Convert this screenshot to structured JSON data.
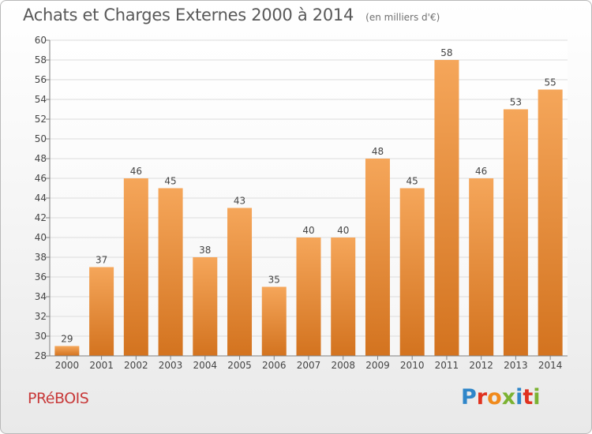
{
  "header": {
    "title": "Achats et Charges Externes 2000 à 2014",
    "unit": "(en milliers d'€)"
  },
  "footer": {
    "commune": "PRéBOIS",
    "brand": "Proxiti",
    "brand_colors": [
      "#2f86c9",
      "#e0321f",
      "#f08a1c",
      "#7bb232",
      "#2f86c9",
      "#e0321f",
      "#7bb232"
    ]
  },
  "colors": {
    "bar_light": "#f5a65a",
    "bar_dark": "#d3731f",
    "grid": "#dcdcdc",
    "axis": "#808080",
    "text": "#444444"
  },
  "chart_data": {
    "type": "bar",
    "categories": [
      "2000",
      "2001",
      "2002",
      "2003",
      "2004",
      "2005",
      "2006",
      "2007",
      "2008",
      "2009",
      "2010",
      "2011",
      "2012",
      "2013",
      "2014"
    ],
    "values": [
      29,
      37,
      46,
      45,
      38,
      43,
      35,
      40,
      40,
      48,
      45,
      58,
      46,
      53,
      55
    ],
    "ylim": [
      28,
      60
    ],
    "yticks": [
      28,
      30,
      32,
      34,
      36,
      38,
      40,
      42,
      44,
      46,
      48,
      50,
      52,
      54,
      56,
      58,
      60
    ],
    "grid": true,
    "xlabel": "",
    "ylabel": ""
  }
}
